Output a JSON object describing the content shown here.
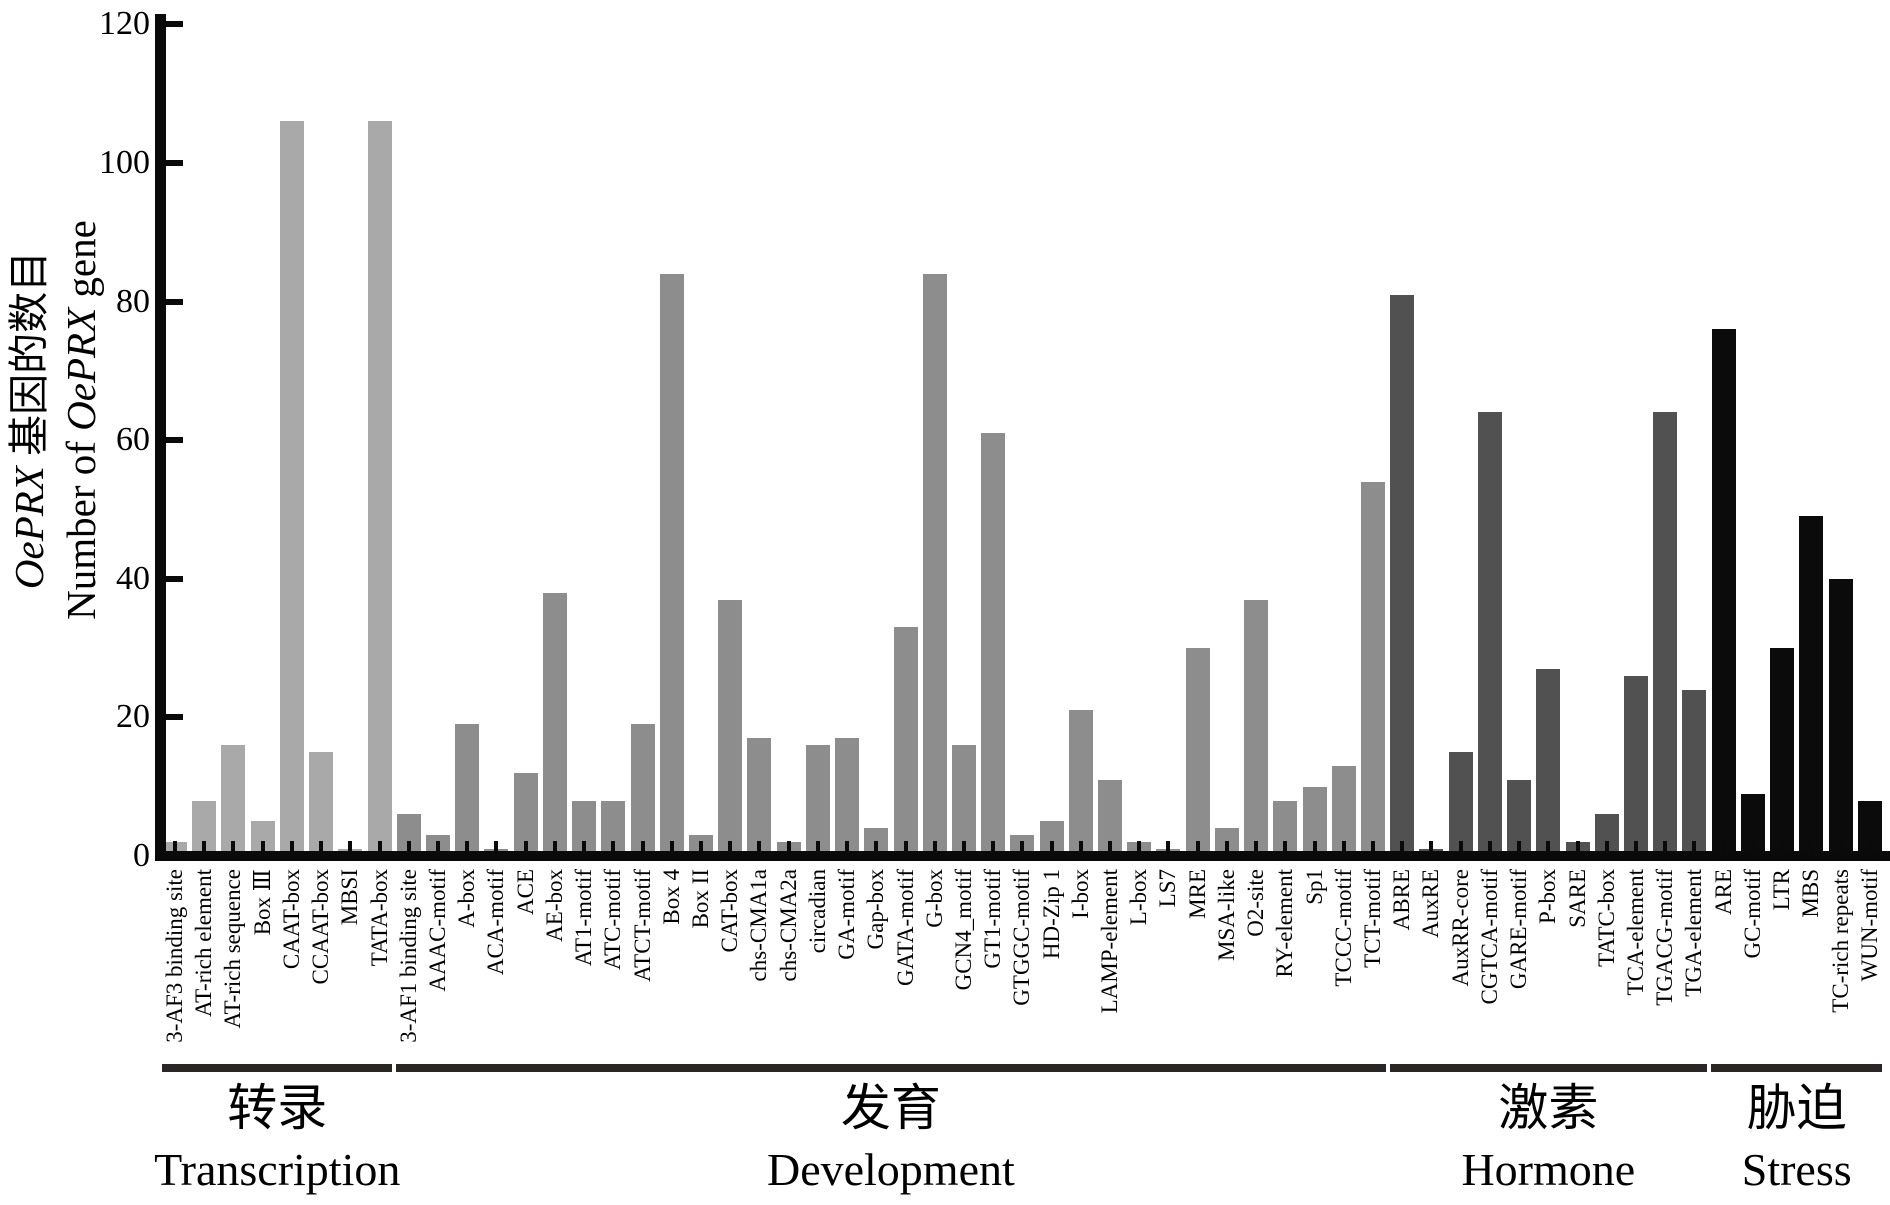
{
  "y_axis": {
    "title_zh_italic": "OePRX",
    "title_zh_rest": " 基因的数目",
    "title_en_pre": "Number of ",
    "title_en_italic": "OePRX",
    "title_en_post": " gene",
    "tick_labels": [
      "0",
      "20",
      "40",
      "60",
      "80",
      "100",
      "120"
    ]
  },
  "chart_data": {
    "type": "bar",
    "title": "",
    "ylabel_line1": "OePRX 基因的数目",
    "ylabel_line2": "Number of OePRX gene",
    "ylim": [
      0,
      120
    ],
    "yticks": [
      0,
      20,
      40,
      60,
      80,
      100,
      120
    ],
    "grid": false,
    "legend": "none",
    "groups": [
      {
        "label_zh": "转录",
        "label_en": "Transcription",
        "color": "#a9a9a9",
        "categories": [
          "3-AF3 binding site",
          "AT-rich element",
          "AT-rich sequence",
          "Box Ⅲ",
          "CAAT-box",
          "CCAAT-box",
          "MBSI",
          "TATA-box"
        ],
        "values": [
          2,
          8,
          16,
          5,
          106,
          15,
          1,
          106
        ]
      },
      {
        "label_zh": "发育",
        "label_en": "Development",
        "color": "#8d8d8d",
        "categories": [
          "3-AF1 binding site",
          "AAAC-motif",
          "A-box",
          "ACA-motif",
          "ACE",
          "AE-box",
          "AT1-motif",
          "ATC-motif",
          "ATCT-motif",
          "Box 4",
          "Box II",
          "CAT-box",
          "chs-CMA1a",
          "chs-CMA2a",
          "circadian",
          "GA-motif",
          "Gap-box",
          "GATA-motif",
          "G-box",
          "GCN4_motif",
          "GT1-motif",
          "GTGGC-motif",
          "HD-Zip 1",
          "I-box",
          "LAMP-element",
          "L-box",
          "LS7",
          "MRE",
          "MSA-like",
          "O2-site",
          "RY-element",
          "Sp1",
          "TCCC-motif",
          "TCT-motif"
        ],
        "values": [
          6,
          3,
          19,
          1,
          12,
          38,
          8,
          8,
          19,
          84,
          3,
          37,
          17,
          2,
          16,
          17,
          4,
          33,
          84,
          16,
          61,
          3,
          5,
          21,
          11,
          2,
          1,
          30,
          4,
          37,
          8,
          10,
          13,
          54
        ]
      },
      {
        "label_zh": "激素",
        "label_en": "Hormone",
        "color": "#515151",
        "categories": [
          "ABRE",
          "AuxRE",
          "AuxRR-core",
          "CGTCA-motif",
          "GARE-motif",
          "P-box",
          "SARE",
          "TATC-box",
          "TCA-element",
          "TGACG-motif",
          "TGA-element"
        ],
        "values": [
          81,
          1,
          15,
          64,
          11,
          27,
          2,
          6,
          26,
          64,
          24
        ]
      },
      {
        "label_zh": "胁迫",
        "label_en": "Stress",
        "color": "#0b0b0b",
        "categories": [
          "ARE",
          "GC-motif",
          "LTR",
          "MBS",
          "TC-rich repeats",
          "WUN-motif"
        ],
        "values": [
          76,
          9,
          30,
          49,
          40,
          8
        ]
      }
    ]
  }
}
